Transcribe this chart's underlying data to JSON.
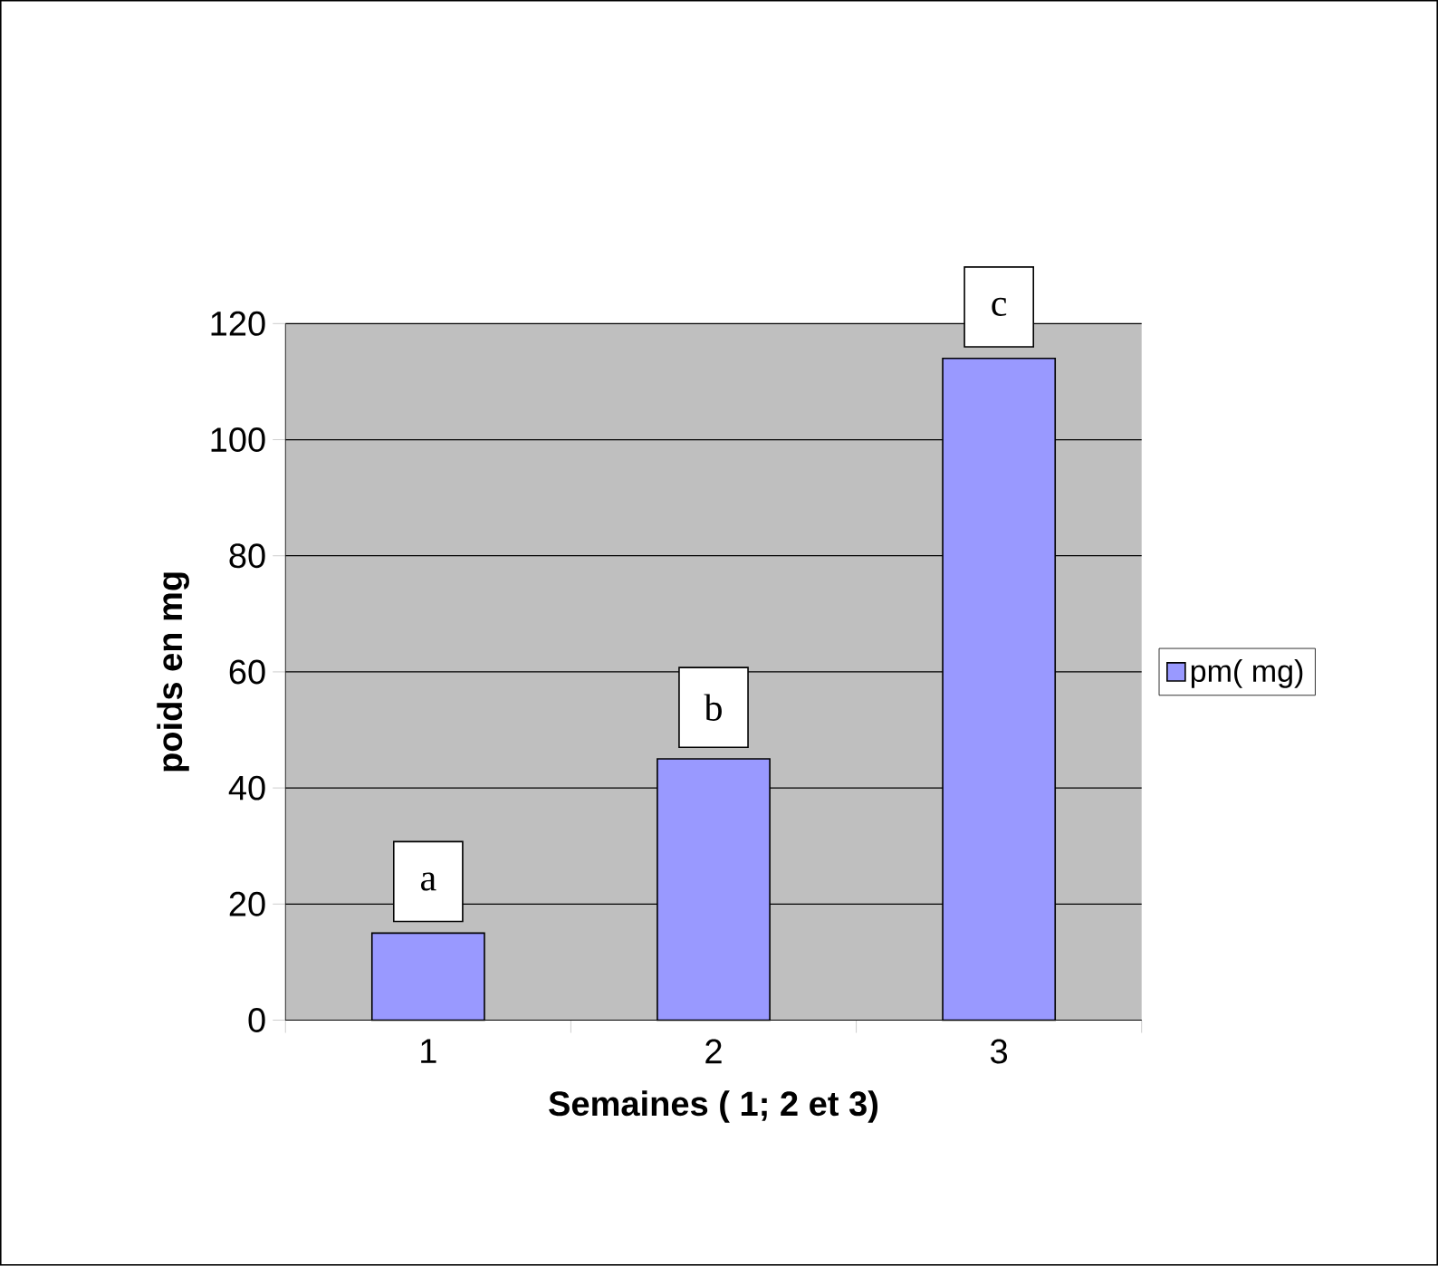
{
  "chart_data": {
    "type": "bar",
    "xlabel": "Semaines ( 1; 2 et 3)",
    "ylabel": "poids en mg",
    "categories": [
      "1",
      "2",
      "3"
    ],
    "series": [
      {
        "name": "pm( mg)",
        "color": "#9999ff",
        "values": [
          15,
          45,
          114
        ]
      }
    ],
    "ylim": [
      0,
      120
    ],
    "yticks": [
      0,
      20,
      40,
      60,
      80,
      100,
      120
    ],
    "grid": "y",
    "legend": "right",
    "annotations": [
      {
        "text": "a",
        "x": "1",
        "y": 15
      },
      {
        "text": "b",
        "x": "2",
        "y": 45
      },
      {
        "text": "c",
        "x": "3",
        "y": 114
      }
    ]
  }
}
